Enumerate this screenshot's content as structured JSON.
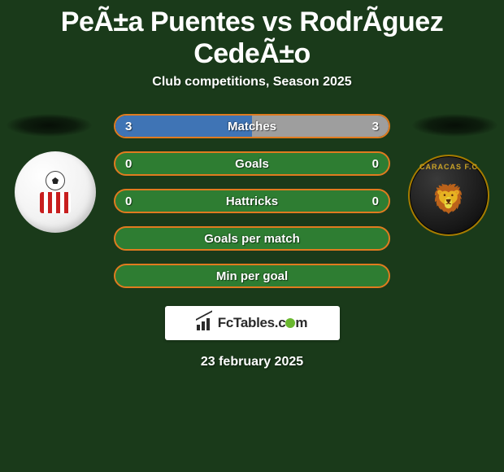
{
  "header": {
    "title": "PeÃ±a Puentes vs RodrÃ­guez CedeÃ±o",
    "subtitle": "Club competitions, Season 2025"
  },
  "colors": {
    "background": "#1a3a1a",
    "bar_border": "#e07b1f",
    "bar_fill_green": "#2e7d32",
    "bar_matches_left": "#3f74b5",
    "bar_matches_right": "#9e9e9e",
    "text": "#ffffff"
  },
  "badges": {
    "left": {
      "name": "estudiantes-merida-badge"
    },
    "right": {
      "name": "caracas-fc-badge",
      "arc_text": "CARACAS F.C"
    }
  },
  "stats": [
    {
      "key": "matches",
      "label": "Matches",
      "left_value": "3",
      "right_value": "3",
      "left_pct": 50,
      "right_pct": 50,
      "left_color": "#3f74b5",
      "right_color": "#9e9e9e",
      "border_color": "#e07b1f"
    },
    {
      "key": "goals",
      "label": "Goals",
      "left_value": "0",
      "right_value": "0",
      "left_pct": 0,
      "right_pct": 0,
      "left_color": "#2e7d32",
      "right_color": "#2e7d32",
      "border_color": "#e07b1f",
      "bg_color": "#2e7d32"
    },
    {
      "key": "hattricks",
      "label": "Hattricks",
      "left_value": "0",
      "right_value": "0",
      "left_pct": 0,
      "right_pct": 0,
      "left_color": "#2e7d32",
      "right_color": "#2e7d32",
      "border_color": "#e07b1f",
      "bg_color": "#2e7d32"
    },
    {
      "key": "gpm",
      "label": "Goals per match",
      "left_value": "",
      "right_value": "",
      "left_pct": 0,
      "right_pct": 0,
      "border_color": "#e07b1f",
      "bg_color": "#2e7d32"
    },
    {
      "key": "mpg",
      "label": "Min per goal",
      "left_value": "",
      "right_value": "",
      "left_pct": 0,
      "right_pct": 0,
      "border_color": "#e07b1f",
      "bg_color": "#2e7d32"
    }
  ],
  "brand": {
    "text_before_dot": "FcTables.c",
    "text_after_dot": "m"
  },
  "date": "23 february 2025"
}
